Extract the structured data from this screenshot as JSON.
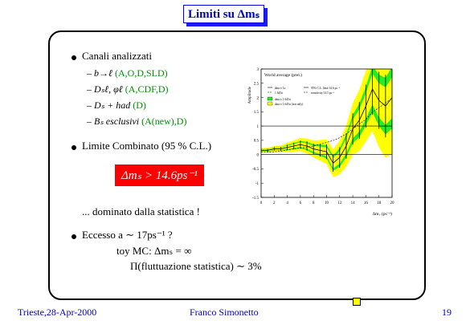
{
  "title": "Limiti su Δmₛ",
  "bullets": [
    {
      "text": "Canali analizzati",
      "items": [
        {
          "text": "b→ℓ",
          "note": "(A,O,D,SLD)"
        },
        {
          "text": "Dₛℓ, φℓ",
          "note": "(A,CDF,D)"
        },
        {
          "text": "Dₛ + had",
          "note": "(D)"
        },
        {
          "text": "Bₛ esclusivi",
          "note": "(A(new),D)"
        }
      ]
    },
    {
      "text": "Limite Combinato (95 % C.L.)",
      "result": "Δmₛ > 14.6ps⁻¹",
      "comment": "... dominato dalla statistica !"
    },
    {
      "text": "Eccesso a ∼ 17ps⁻¹ ?",
      "lines": [
        "toy MC: Δmₛ  =  ∞",
        "Π(fluttuazione statistica) ∼ 3%"
      ]
    }
  ],
  "footer": {
    "left": "Trieste,28-Apr-2000",
    "center": "Franco Simonetto",
    "right": "19"
  },
  "chart_data": {
    "type": "amplitude",
    "title": "World average (prel.)",
    "y_label": "Amplitude",
    "x_label": "Δmₛ (ps⁻¹)",
    "x": [
      0,
      1,
      2,
      3,
      4,
      5,
      6,
      7,
      8,
      9,
      10,
      11,
      12,
      13,
      14,
      15,
      16,
      17,
      18,
      19,
      20
    ],
    "series": [
      {
        "name": "data ± 1σ",
        "color": "#000000",
        "values": [
          0.15,
          0.15,
          0.2,
          0.2,
          0.25,
          0.3,
          0.35,
          0.3,
          0.2,
          0.15,
          0.1,
          -0.3,
          -0.1,
          0.3,
          0.9,
          1.2,
          1.7,
          2.3,
          1.9,
          1.7,
          2.0
        ],
        "errors": [
          0.05,
          0.05,
          0.06,
          0.07,
          0.1,
          0.12,
          0.14,
          0.16,
          0.18,
          0.22,
          0.26,
          0.3,
          0.36,
          0.44,
          0.55,
          0.65,
          0.75,
          0.9,
          1.0,
          1.1,
          1.2
        ]
      }
    ],
    "legend": [
      "data ± 1σ",
      "1.645σ",
      "95% C.L. limit 14.6 ps⁻¹",
      "sensitivity 14.5 ps⁻¹",
      "data ± 1.645σ",
      "data ± 1.645σ (stat only)"
    ],
    "xlim": [
      0,
      20
    ],
    "xticks": [
      0,
      2,
      4,
      6,
      8,
      10,
      12,
      14,
      16,
      18,
      20
    ],
    "ylim": [
      -1.5,
      3
    ],
    "yticks": [
      -1.5,
      -1,
      -0.5,
      0,
      0.5,
      1,
      1.5,
      2,
      2.5,
      3
    ]
  }
}
